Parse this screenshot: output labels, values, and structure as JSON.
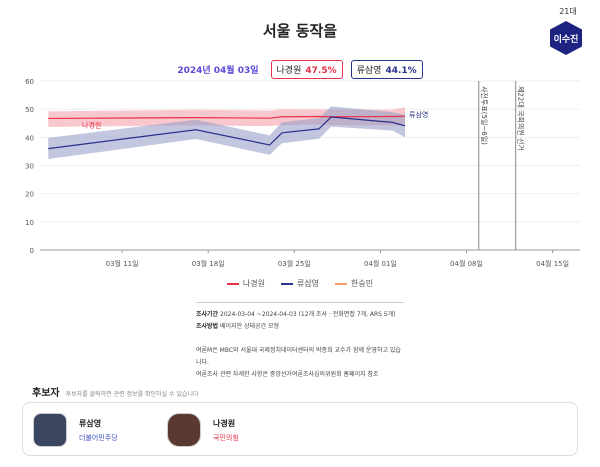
{
  "title": "서울 동작을",
  "badge": {
    "generation": "21대",
    "incumbent": "이수진",
    "color": "#1c2380"
  },
  "summary": {
    "date": "2024년 04월 03일",
    "items": [
      {
        "name": "나경원",
        "value": "47.5%",
        "color": "#e8324a"
      },
      {
        "name": "류삼영",
        "value": "44.1%",
        "color": "#2a318a"
      }
    ]
  },
  "chart_data": {
    "type": "line",
    "ylim": [
      0,
      60
    ],
    "yticks": [
      "0",
      "10",
      "20",
      "30",
      "40",
      "50",
      "60"
    ],
    "xlim": [
      "2024-03-04",
      "2024-04-17"
    ],
    "xticks": [
      {
        "date": "2024-03-11",
        "label": "03월 11일"
      },
      {
        "date": "2024-03-18",
        "label": "03월 18일"
      },
      {
        "date": "2024-03-25",
        "label": "03월 25일"
      },
      {
        "date": "2024-04-01",
        "label": "04월 01일"
      },
      {
        "date": "2024-04-08",
        "label": "04월 08일"
      },
      {
        "date": "2024-04-15",
        "label": "04월 15일"
      }
    ],
    "grid": true,
    "series": [
      {
        "name": "나경원",
        "color": "#e8324a",
        "band_color": "#f4a3ad",
        "x": [
          "2024-03-05",
          "2024-03-17",
          "2024-03-23",
          "2024-03-24",
          "2024-03-27",
          "2024-03-28",
          "2024-04-02",
          "2024-04-03"
        ],
        "values": [
          46.7,
          47.0,
          46.8,
          47.3,
          47.4,
          47.3,
          47.4,
          47.5
        ],
        "lower": [
          43.7,
          44.2,
          44.0,
          44.3,
          44.5,
          44.4,
          44.2,
          44.1
        ],
        "upper": [
          49.2,
          49.8,
          49.5,
          50.0,
          49.9,
          49.9,
          49.8,
          50.7
        ]
      },
      {
        "name": "류삼영",
        "color": "#2a318a",
        "band_color": "#9aa0c8",
        "x": [
          "2024-03-05",
          "2024-03-17",
          "2024-03-23",
          "2024-03-24",
          "2024-03-27",
          "2024-03-28",
          "2024-04-02",
          "2024-04-03"
        ],
        "values": [
          36.0,
          42.7,
          37.3,
          41.6,
          43.0,
          47.2,
          45.3,
          44.1
        ],
        "lower": [
          32.3,
          39.4,
          33.8,
          37.9,
          39.5,
          43.8,
          42.4,
          40.0
        ],
        "upper": [
          39.8,
          46.3,
          40.7,
          45.4,
          46.8,
          51.0,
          48.9,
          48.0
        ]
      },
      {
        "name": "한승민",
        "color": "#f5a06b",
        "values": []
      }
    ],
    "markers": [
      {
        "date": "2024-04-09",
        "label": "사전투표(5일~6일)"
      },
      {
        "date": "2024-04-12",
        "label": "제22대 국회의원 선거"
      }
    ]
  },
  "info": {
    "period_label": "조사기간",
    "period": "2024-03-04 ~2024-04-03 (12개 조사 · 전화면접 7개, ARS 5개)",
    "method_label": "조사방법",
    "method": "베이지안 상태공간 모형",
    "note1": "여론M은 MBC와 서울대 국제정치데이터센터의 박종희 교수가 함께 운영하고 있습니다.",
    "note2": "여론조사 관련 자세한 사항은 중앙선거여론조사심의위원회 홈페이지 참조"
  },
  "candidates": {
    "heading": "후보자",
    "hint": "후보자를 클릭하면 관련 정보를 확인하실 수 있습니다",
    "list": [
      {
        "name": "류삼영",
        "party": "더불어민주당",
        "party_color": "#3b4cc0"
      },
      {
        "name": "나경원",
        "party": "국민의힘",
        "party_color": "#e8324a"
      }
    ]
  }
}
